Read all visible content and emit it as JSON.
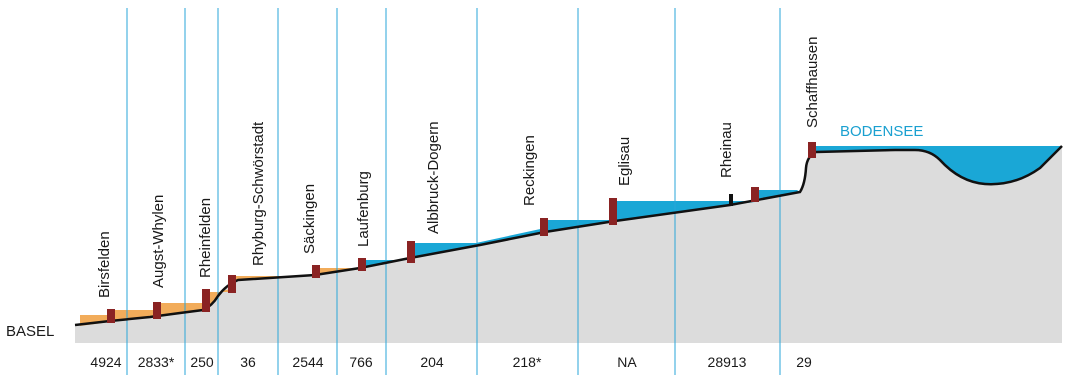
{
  "start_label": "BASEL",
  "lake_label": "BODENSEE",
  "stations": [
    {
      "name": "Birsfelden",
      "value": "4924"
    },
    {
      "name": "Augst-Whylen",
      "value": "2833*"
    },
    {
      "name": "Rheinfelden",
      "value": "250"
    },
    {
      "name": "Rhyburg-Schwörstadt",
      "value": "36"
    },
    {
      "name": "Säckingen",
      "value": "2544"
    },
    {
      "name": "Laufenburg",
      "value": "766"
    },
    {
      "name": "Albbruck-Dogern",
      "value": "204"
    },
    {
      "name": "Reckingen",
      "value": "218*"
    },
    {
      "name": "Eglisau",
      "value": "NA"
    },
    {
      "name": "Rheinau",
      "value": "28913"
    },
    {
      "name": "Schaffhausen",
      "value": "29"
    }
  ],
  "colors": {
    "ground": "#dcdcdc",
    "riverbed": "#111111",
    "orange_reservoir": "#f2ac5a",
    "blue_reservoir": "#1aa7d6",
    "lake": "#1aa7d6",
    "dam": "#8a2323",
    "grid": "#2aa6d8",
    "text": "#1a1a1a",
    "lake_text": "#1aa0d0"
  }
}
